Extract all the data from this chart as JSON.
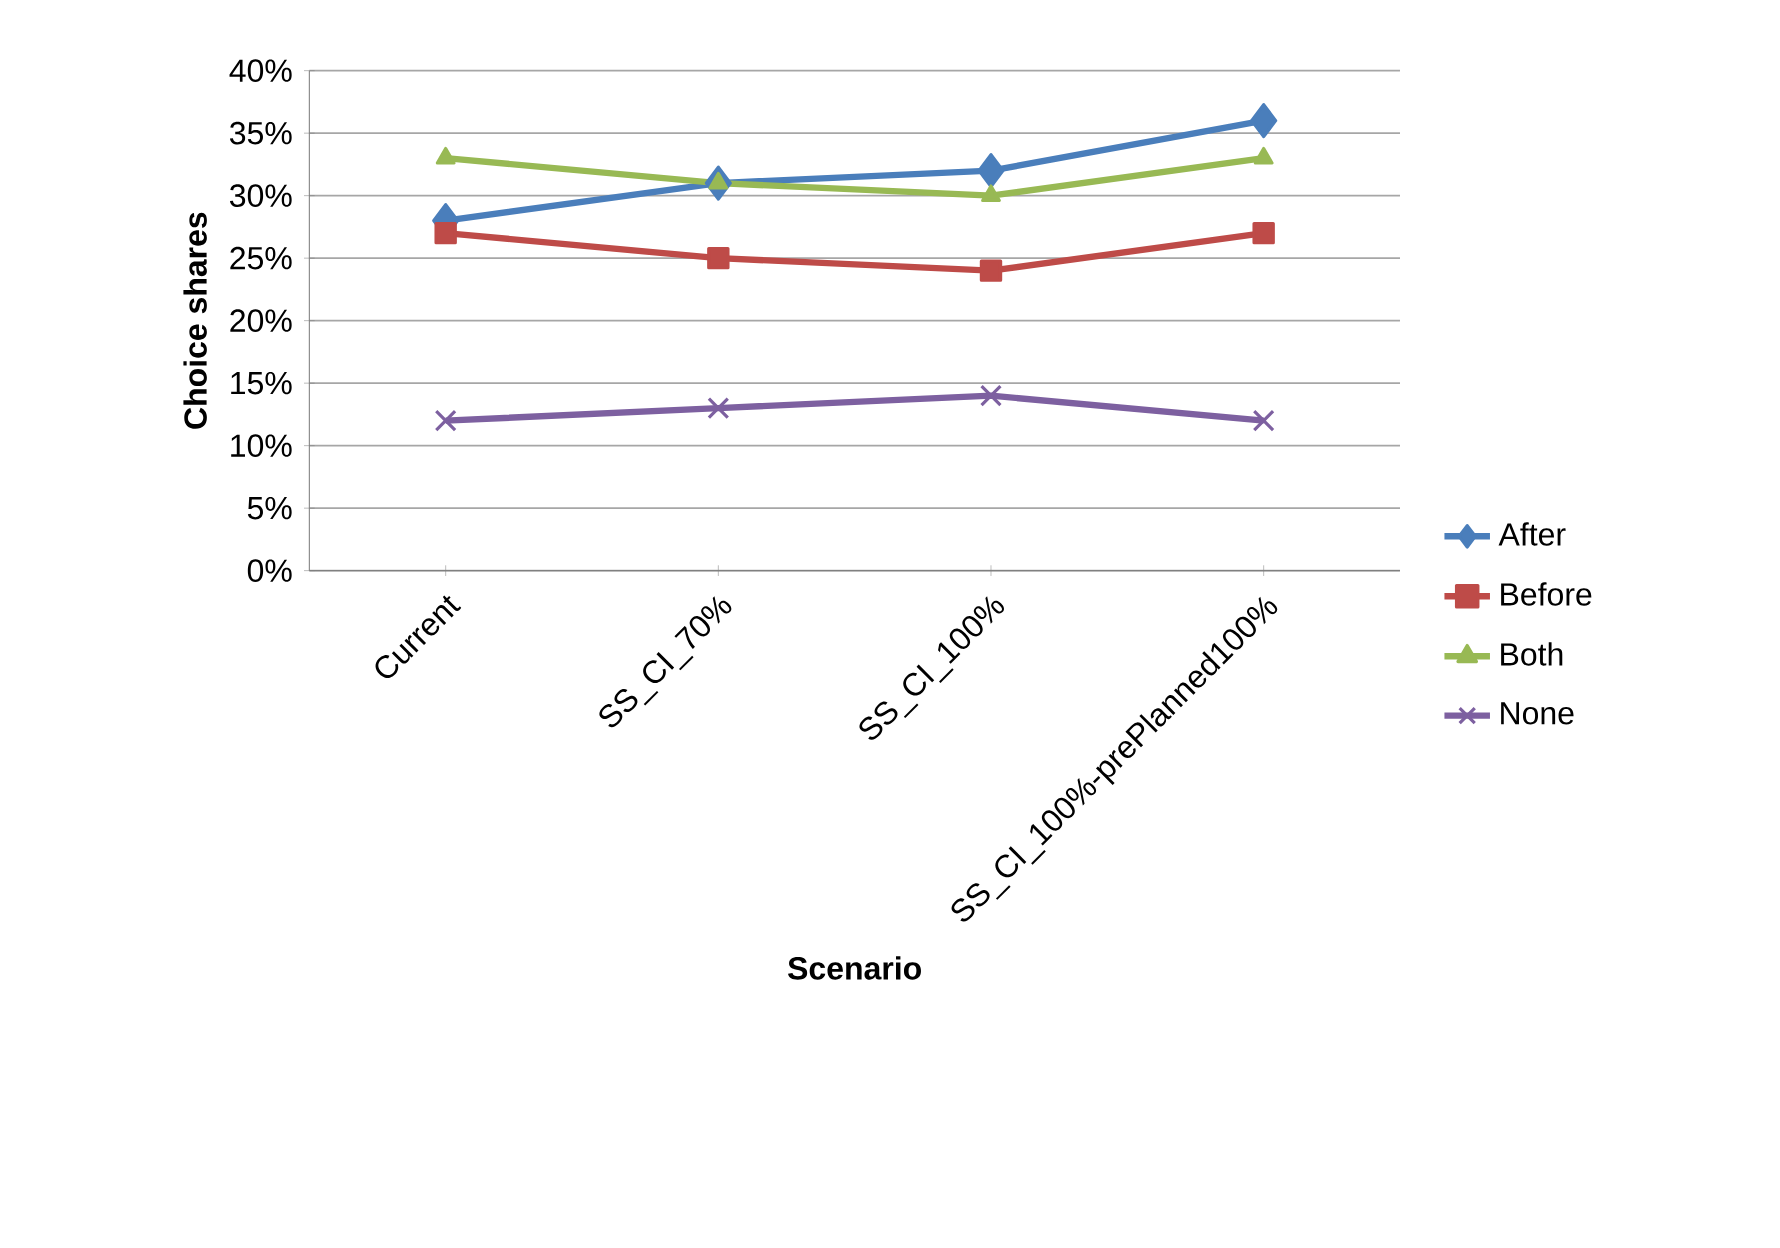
{
  "chart_data": {
    "type": "line",
    "xlabel": "Scenario",
    "ylabel": "Choice shares",
    "categories": [
      "Current",
      "SS_CI_70%",
      "SS_CI_100%",
      "SS_CI_100%-prePlanned100%"
    ],
    "series": [
      {
        "name": "After",
        "color": "#4a7ebb",
        "marker": "diamond",
        "values": [
          28,
          31,
          32,
          36
        ]
      },
      {
        "name": "Before",
        "color": "#be4b48",
        "marker": "square",
        "values": [
          27,
          25,
          24,
          27
        ]
      },
      {
        "name": "Both",
        "color": "#98b954",
        "marker": "triangle",
        "values": [
          33,
          31,
          30,
          33
        ]
      },
      {
        "name": "None",
        "color": "#7d60a0",
        "marker": "cross",
        "values": [
          12,
          13,
          14,
          12
        ]
      }
    ],
    "ylim": [
      0,
      40
    ],
    "yticks": [
      {
        "value": 0,
        "label": "0%"
      },
      {
        "value": 5,
        "label": "5%"
      },
      {
        "value": 10,
        "label": "10%"
      },
      {
        "value": 15,
        "label": "15%"
      },
      {
        "value": 20,
        "label": "20%"
      },
      {
        "value": 25,
        "label": "25%"
      },
      {
        "value": 30,
        "label": "30%"
      },
      {
        "value": 35,
        "label": "35%"
      },
      {
        "value": 40,
        "label": "40%"
      }
    ],
    "grid": "y",
    "legend": "right"
  }
}
